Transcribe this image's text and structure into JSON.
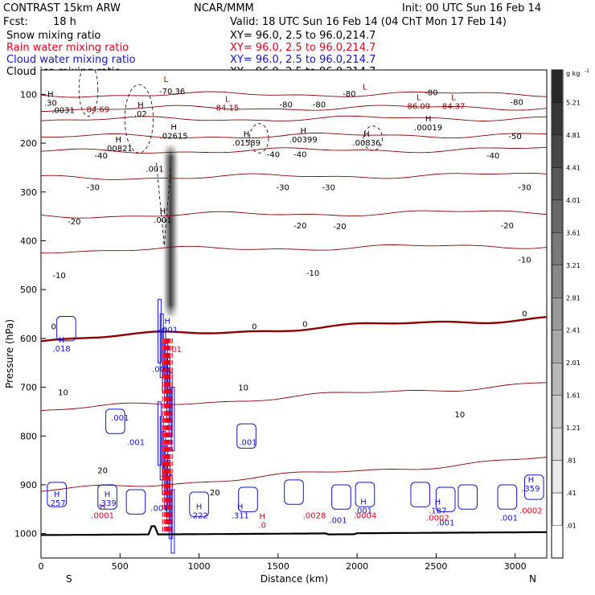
{
  "header": {
    "model": "CONTRAST 15km ARW",
    "org": "NCAR/MMM",
    "init": "Init: 00 UTC Sun 16 Feb 14",
    "fcst_label": "Fcst:",
    "fcst_value": "18 h",
    "valid": "Valid: 18 UTC Sun 16 Feb 14 (04 ChT Mon 17 Feb 14)",
    "fields": [
      {
        "name": "Snow mixing ratio",
        "xy": "XY=  96.0,  2.5 to  96.0,214.7",
        "color": "#000000"
      },
      {
        "name": "Rain water mixing ratio",
        "xy": "XY=  96.0,  2.5 to  96.0,214.7",
        "color": "#e8001c"
      },
      {
        "name": "Cloud water mixing ratio",
        "xy": "XY=  96.0,  2.5 to  96.0,214.7",
        "color": "#1414d2"
      },
      {
        "name": "Cloud ice mixing ratio",
        "xy": "XY=  96.0,  2.5 to  96.0,214.7",
        "color": "#000000"
      }
    ]
  },
  "chart_data": {
    "type": "cross-section",
    "xlabel": "Distance (km)",
    "ylabel": "Pressure (hPa)",
    "xlim": [
      0,
      3200
    ],
    "ylim": [
      1050,
      50
    ],
    "xticks": [
      0,
      500,
      1000,
      1500,
      2000,
      2500,
      3000
    ],
    "yticks": [
      100,
      200,
      300,
      400,
      500,
      600,
      700,
      800,
      900,
      1000
    ],
    "endpoint_labels": {
      "left": "S",
      "right": "N"
    },
    "colorbar": {
      "unit": "g kg",
      "unit_exp": "-1",
      "levels": [
        "5.21",
        "4.81",
        "4.41",
        "4.01",
        "3.61",
        "3.21",
        "2.81",
        "2.41",
        "2.01",
        "1.61",
        "1.21",
        ".81",
        ".41",
        ".01"
      ]
    },
    "temperature_isotherms": [
      {
        "label": "-70",
        "p": 100
      },
      {
        "label": "-80",
        "p": 128
      },
      {
        "label": "-60",
        "p": 150
      },
      {
        "label": "-50",
        "p": 185
      },
      {
        "label": "-40",
        "p": 215
      },
      {
        "label": "-30",
        "p": 268
      },
      {
        "label": "-20",
        "p": 345
      },
      {
        "label": "-10",
        "p": 415
      },
      {
        "label": "0",
        "p": 580
      },
      {
        "label": "10",
        "p": 720
      },
      {
        "label": "20",
        "p": 880
      }
    ],
    "isotherm_labels": [
      {
        "text": "-70.36",
        "x": 830,
        "p": 93
      },
      {
        "text": "-80",
        "x": 1950,
        "p": 98
      },
      {
        "text": "-80",
        "x": 2470,
        "p": 95
      },
      {
        "text": "-80",
        "x": 1550,
        "p": 120
      },
      {
        "text": "-80",
        "x": 1760,
        "p": 120
      },
      {
        "text": "-80",
        "x": 3010,
        "p": 115
      },
      {
        "text": "-50",
        "x": 3000,
        "p": 185
      },
      {
        "text": "-40",
        "x": 380,
        "p": 225
      },
      {
        "text": "-40",
        "x": 1470,
        "p": 222
      },
      {
        "text": "-40",
        "x": 1640,
        "p": 222
      },
      {
        "text": "-40",
        "x": 2860,
        "p": 225
      },
      {
        "text": "-30",
        "x": 330,
        "p": 290
      },
      {
        "text": "-30",
        "x": 1530,
        "p": 290
      },
      {
        "text": "-30",
        "x": 1820,
        "p": 290
      },
      {
        "text": "-30",
        "x": 3060,
        "p": 290
      },
      {
        "text": "-20",
        "x": 210,
        "p": 360
      },
      {
        "text": "-20",
        "x": 1640,
        "p": 368
      },
      {
        "text": "-20",
        "x": 1890,
        "p": 370
      },
      {
        "text": "-20",
        "x": 2950,
        "p": 368
      },
      {
        "text": "-10",
        "x": 115,
        "p": 470
      },
      {
        "text": "-10",
        "x": 1720,
        "p": 465
      },
      {
        "text": "-10",
        "x": 3060,
        "p": 438
      },
      {
        "text": "0",
        "x": 80,
        "p": 575
      },
      {
        "text": "0",
        "x": 1350,
        "p": 575
      },
      {
        "text": "0",
        "x": 1670,
        "p": 570
      },
      {
        "text": "0",
        "x": 3060,
        "p": 548
      },
      {
        "text": "10",
        "x": 140,
        "p": 710
      },
      {
        "text": "10",
        "x": 1280,
        "p": 700
      },
      {
        "text": "10",
        "x": 2650,
        "p": 755
      },
      {
        "text": "20",
        "x": 390,
        "p": 870
      },
      {
        "text": "20",
        "x": 1100,
        "p": 915
      }
    ],
    "extrema": [
      {
        "mark": "L",
        "val": "",
        "x": 790,
        "p": 85,
        "color": "#8b0000"
      },
      {
        "mark": "H",
        "val": ".30",
        "x": 60,
        "p": 115,
        "color": "#000000"
      },
      {
        "mark": "",
        "val": ".0031",
        "x": 140,
        "p": 130,
        "color": "#000000"
      },
      {
        "mark": "",
        "val": "84.69",
        "x": 360,
        "p": 128,
        "color": "#8b0000"
      },
      {
        "mark": "H",
        "val": ".02",
        "x": 630,
        "p": 137,
        "color": "#000000"
      },
      {
        "mark": "L",
        "val": "84.15",
        "x": 1180,
        "p": 125,
        "color": "#8b0000"
      },
      {
        "mark": "L",
        "val": "",
        "x": 2050,
        "p": 100,
        "color": "#8b0000"
      },
      {
        "mark": "L",
        "val": "86.09",
        "x": 2390,
        "p": 122,
        "color": "#8b0000"
      },
      {
        "mark": "L",
        "val": "84.37",
        "x": 2610,
        "p": 122,
        "color": "#8b0000"
      },
      {
        "mark": "H",
        "val": ".00019",
        "x": 2450,
        "p": 165,
        "color": "#000000"
      },
      {
        "mark": "H",
        "val": ".02615",
        "x": 840,
        "p": 183,
        "color": "#000000"
      },
      {
        "mark": "H",
        "val": ".01589",
        "x": 1300,
        "p": 197,
        "color": "#000000"
      },
      {
        "mark": "H",
        "val": ".00399",
        "x": 1660,
        "p": 190,
        "color": "#000000"
      },
      {
        "mark": "H",
        "val": ".00836",
        "x": 2060,
        "p": 197,
        "color": "#000000"
      },
      {
        "mark": "H",
        "val": ".00821",
        "x": 490,
        "p": 208,
        "color": "#000000"
      },
      {
        "mark": "",
        "val": ".001",
        "x": 720,
        "p": 250,
        "color": "#000000"
      },
      {
        "mark": "H",
        "val": ".001",
        "x": 770,
        "p": 355,
        "color": "#000000"
      },
      {
        "mark": "H",
        "val": "-.001",
        "x": 800,
        "p": 580,
        "color": "#1414d2"
      },
      {
        "mark": "H",
        "val": ".018",
        "x": 130,
        "p": 618,
        "color": "#1414d2"
      },
      {
        "mark": "",
        "val": ".001",
        "x": 760,
        "p": 660,
        "color": "#1414d2"
      },
      {
        "mark": "",
        "val": ".01",
        "x": 850,
        "p": 620,
        "color": "#e8001c"
      },
      {
        "mark": "",
        "val": ".001",
        "x": 500,
        "p": 760,
        "color": "#1414d2"
      },
      {
        "mark": "",
        "val": ".001",
        "x": 600,
        "p": 810,
        "color": "#1414d2"
      },
      {
        "mark": "",
        "val": ".001",
        "x": 1310,
        "p": 810,
        "color": "#1414d2"
      },
      {
        "mark": "H",
        "val": ".65",
        "x": 790,
        "p": 875,
        "color": "#e8001c"
      },
      {
        "mark": "H",
        "val": ".257",
        "x": 100,
        "p": 935,
        "color": "#1414d2"
      },
      {
        "mark": "H",
        "val": ".339",
        "x": 420,
        "p": 935,
        "color": "#1414d2"
      },
      {
        "mark": "H",
        "val": ".0001",
        "x": 390,
        "p": 960,
        "color": "#e8001c"
      },
      {
        "mark": "",
        "val": ".001",
        "x": 750,
        "p": 945,
        "color": "#1414d2"
      },
      {
        "mark": "H",
        "val": ".222",
        "x": 1000,
        "p": 960,
        "color": "#1414d2"
      },
      {
        "mark": "H",
        "val": ".311",
        "x": 1260,
        "p": 960,
        "color": "#1414d2"
      },
      {
        "mark": "H",
        "val": ".0",
        "x": 1400,
        "p": 980,
        "color": "#e8001c"
      },
      {
        "mark": "",
        "val": ".0028",
        "x": 1730,
        "p": 960,
        "color": "#e8001c"
      },
      {
        "mark": "",
        "val": ".001",
        "x": 1880,
        "p": 970,
        "color": "#1414d2"
      },
      {
        "mark": "H",
        "val": ".001",
        "x": 2040,
        "p": 950,
        "color": "#1414d2"
      },
      {
        "mark": "",
        "val": ".0004",
        "x": 2050,
        "p": 960,
        "color": "#e8001c"
      },
      {
        "mark": "H",
        "val": ".187",
        "x": 2510,
        "p": 950,
        "color": "#1414d2"
      },
      {
        "mark": "",
        "val": ".0002",
        "x": 2510,
        "p": 965,
        "color": "#e8001c"
      },
      {
        "mark": "",
        "val": ".001",
        "x": 2560,
        "p": 975,
        "color": "#1414d2"
      },
      {
        "mark": "",
        "val": ".001",
        "x": 2960,
        "p": 965,
        "color": "#1414d2"
      },
      {
        "mark": "H",
        "val": ".359",
        "x": 3100,
        "p": 905,
        "color": "#1414d2"
      },
      {
        "mark": "",
        "val": ".0002",
        "x": 3100,
        "p": 950,
        "color": "#e8001c"
      }
    ]
  }
}
